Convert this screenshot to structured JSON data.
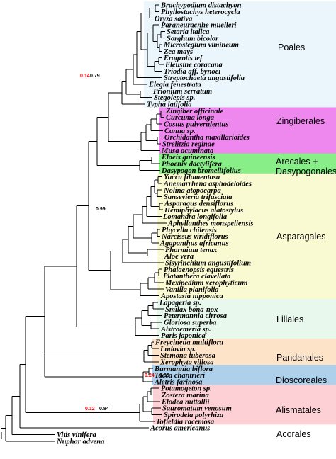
{
  "colors": {
    "poales": "#eaf6fb",
    "zingiberales": "#ee88ee",
    "arecales": "#88ee88",
    "asparagales": "#fafad2",
    "liliales": "#e8f8ec",
    "pandanales": "#fde3c8",
    "dioscoreales": "#aed0ea",
    "alismatales": "#fcd0d4",
    "acorales": "#ffffff",
    "support_low": "#ff0000",
    "support_high": "#000000"
  },
  "taxa": [
    "Brachypodium distachyon",
    "Phyllostachys heterocycla",
    "Oryza sativa",
    "Paraneuracnhe muelleri",
    "Setaria italica",
    "Sorghum bicolor",
    "Microstegium vimineum",
    "Zea mays",
    "Eragrotis tef",
    "Eleusine coracana",
    "Triodia aff. bynoei",
    "Streptochaeta angustifolia",
    "Elegia fenestrata",
    "Prionium serratum",
    "Stegolepis sp.",
    "Typha latifolia",
    "Zingiber officinale",
    "Curcuma longa",
    "Costus pulverulentus",
    "Canna sp.",
    "Orchidantha maxillarioides",
    "Strelitzia reginae",
    "Musa acuminata",
    "Elaeis guineensis",
    "Phoenix dactylifera",
    "Dasypogon bromeliifolius",
    "Yucca filamentosa",
    "Anemarrhena asphodeloides",
    "Nolina atopocarpa",
    "Sansevieria trifasciata",
    "Asparagus densiflorus",
    "Hemiphylacus alatostylus",
    "Lomandra longifolia",
    "Aphyllanthes monspeliensis",
    "Phycella chilensis",
    "Narcissus viridiflorus",
    "Agapanthus africanus",
    "Phormium tenax",
    "Aloe vera",
    "Sisyrinchium angustifolium",
    "Phalaenopsis equestris",
    "Platanthera clavellata",
    "Mexipedium xerophyticum",
    "Vanilla planifolia",
    "Apostasia nipponica",
    "Lapageria sp.",
    "Smilax bona-nox",
    "Petermannia cirrosa",
    "Gloriosa superba",
    "Alstroemeria sp.",
    "Paris japonica",
    "Freycinetia multiflora",
    "Ludovia sp.",
    "Stemona tuberosa",
    "Xerophyta villosa",
    "Burmannia biflora",
    "Tacca chantrieri",
    "Aletris farinosa",
    "Potamogeton sp.",
    "Zostera marina",
    "Elodea nuttallii",
    "Sauromatum venosum",
    "Spirodela polyrhiza",
    "Tofieldia racemosa",
    "Acorus americanus",
    "Vitis vinifera",
    "Nuphar advena"
  ],
  "orders": [
    {
      "name": "Poales",
      "lines": [
        "Poales"
      ],
      "from": 0,
      "to": 15,
      "color_key": "poales"
    },
    {
      "name": "Zingiberales",
      "lines": [
        "Zingiberales"
      ],
      "from": 16,
      "to": 22,
      "color_key": "zingiberales"
    },
    {
      "name": "Arecales + Dasypogonales",
      "lines": [
        "Arecales +",
        "Dasypogonales"
      ],
      "from": 23,
      "to": 25,
      "color_key": "arecales"
    },
    {
      "name": "Asparagales",
      "lines": [
        "Asparagales"
      ],
      "from": 26,
      "to": 44,
      "color_key": "asparagales"
    },
    {
      "name": "Liliales",
      "lines": [
        "Liliales"
      ],
      "from": 45,
      "to": 50,
      "color_key": "liliales"
    },
    {
      "name": "Pandanales",
      "lines": [
        "Pandanales"
      ],
      "from": 51,
      "to": 54,
      "color_key": "pandanales"
    },
    {
      "name": "Dioscoreales",
      "lines": [
        "Dioscoreales"
      ],
      "from": 55,
      "to": 57,
      "color_key": "dioscoreales"
    },
    {
      "name": "Alismatales",
      "lines": [
        "Alismatales"
      ],
      "from": 58,
      "to": 63,
      "color_key": "alismatales"
    },
    {
      "name": "Acorales",
      "lines": [
        "Acorales"
      ],
      "from": 64,
      "to": 64,
      "color_key": "acorales"
    }
  ],
  "support_values": [
    {
      "label": "0.14",
      "color_key": "support_low",
      "node": "commelinids"
    },
    {
      "label": "0.79",
      "color_key": "support_high",
      "node": "commelinids"
    },
    {
      "label": "0.99",
      "color_key": "support_high",
      "node": "asparagales"
    },
    {
      "label": "0.24",
      "color_key": "support_low",
      "node": "dioscoreales"
    },
    {
      "label": "0.85",
      "color_key": "support_high",
      "node": "dioscoreales"
    },
    {
      "label": "0.12",
      "color_key": "support_low",
      "node": "alismatales"
    },
    {
      "label": "0.84",
      "color_key": "support_high",
      "node": "alismatales"
    }
  ]
}
